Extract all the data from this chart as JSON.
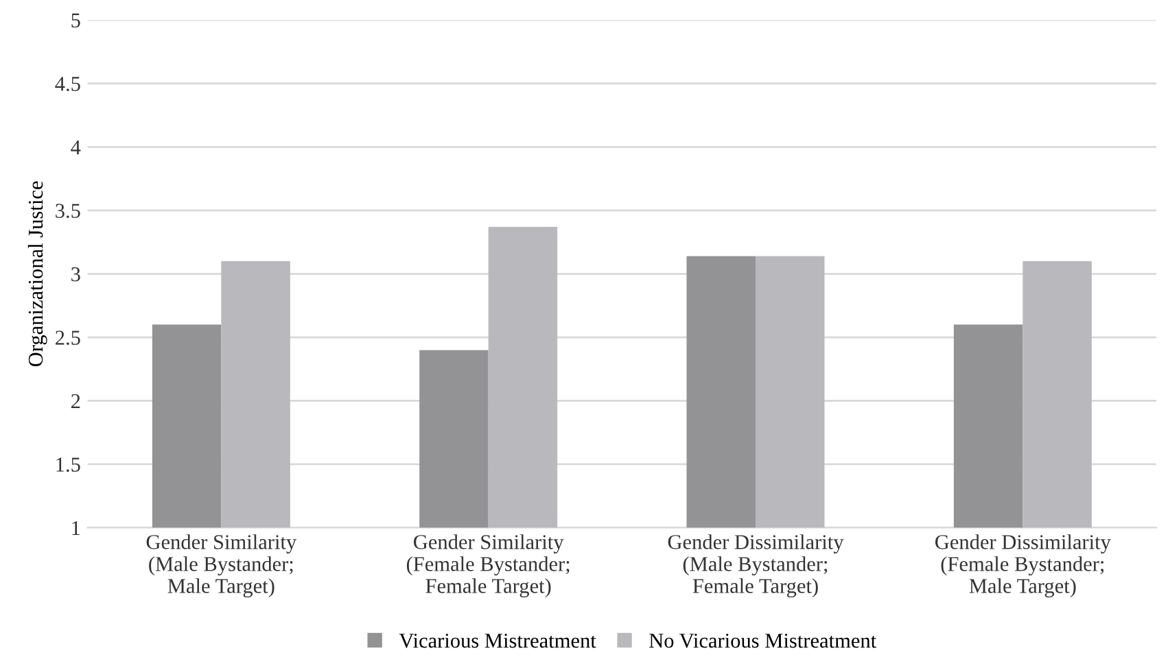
{
  "chart_data": {
    "type": "bar",
    "ylabel": "Organizational Justice",
    "categories": [
      "Gender Similarity\n(Male Bystander;\nMale Target)",
      "Gender Similarity\n(Female Bystander;\nFemale Target)",
      "Gender Dissimilarity\n(Male Bystander;\nFemale Target)",
      "Gender Dissimilarity\n(Female Bystander;\nMale Target)"
    ],
    "series": [
      {
        "name": "Vicarious Mistreatment",
        "color": "#939396",
        "values": [
          2.6,
          2.4,
          3.14,
          2.6
        ]
      },
      {
        "name": "No Vicarious Mistreatment",
        "color": "#b9b9bd",
        "values": [
          3.1,
          3.37,
          3.14,
          3.1
        ]
      }
    ],
    "ylim": [
      1,
      5
    ],
    "yticks": [
      1,
      1.5,
      2,
      2.5,
      3,
      3.5,
      4,
      4.5,
      5
    ],
    "grid": "y",
    "legend": "bottom"
  }
}
